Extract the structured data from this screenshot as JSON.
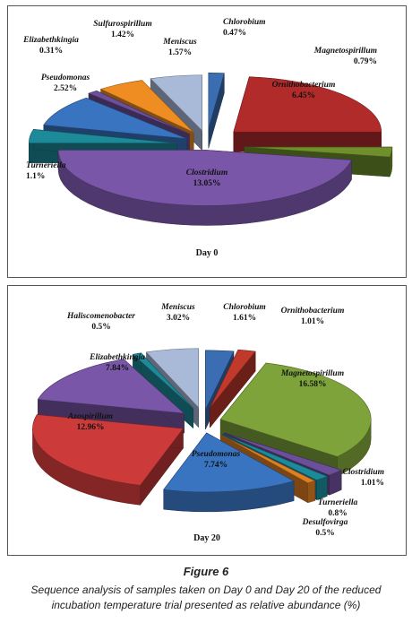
{
  "figure": {
    "title": "Figure 6",
    "caption": "Sequence analysis of samples taken on Day 0 and Day 20 of the reduced incubation temperature trial presented as relative abundance (%)"
  },
  "chart_data": [
    {
      "type": "pie",
      "title": "Day 0",
      "slices": [
        {
          "label": "Chlorobium",
          "value": 0.47,
          "display": "0.47%",
          "color": "#3b6db3"
        },
        {
          "label": "Ornithobacterium",
          "value": 6.45,
          "display": "6.45%",
          "color": "#b22b2b"
        },
        {
          "label": "Magnetospirillum",
          "value": 0.79,
          "display": "0.79%",
          "color": "#6e8f2b"
        },
        {
          "label": "Clostridium",
          "value": 13.05,
          "display": "13.05%",
          "color": "#7a56a8"
        },
        {
          "label": "Turneriella",
          "value": 1.1,
          "display": "1.1%",
          "color": "#1c8a99"
        },
        {
          "label": "Pseudomonas",
          "value": 2.52,
          "display": "2.52%",
          "color": "#3974c1"
        },
        {
          "label": "Elizabethkingia",
          "value": 0.31,
          "display": "0.31%",
          "color": "#6b4f98"
        },
        {
          "label": "Sulfurospirillum",
          "value": 1.42,
          "display": "1.42%",
          "color": "#ef8d22"
        },
        {
          "label": "Meniscus",
          "value": 1.57,
          "display": "1.57%",
          "color": "#a9b9d8"
        }
      ]
    },
    {
      "type": "pie",
      "title": "Day 20",
      "slices": [
        {
          "label": "Chlorobium",
          "value": 1.61,
          "display": "1.61%",
          "color": "#3b6db3"
        },
        {
          "label": "Ornithobacterium",
          "value": 1.01,
          "display": "1.01%",
          "color": "#c0392b"
        },
        {
          "label": "Magnetospirillum",
          "value": 16.58,
          "display": "16.58%",
          "color": "#7ea33a"
        },
        {
          "label": "Clostridium",
          "value": 1.01,
          "display": "1.01%",
          "color": "#6b4f98"
        },
        {
          "label": "Turneriella",
          "value": 0.8,
          "display": "0.8%",
          "color": "#1c8a99"
        },
        {
          "label": "Desulfovirga",
          "value": 0.5,
          "display": "0.5%",
          "color": "#e07f22"
        },
        {
          "label": "Pseudomonas",
          "value": 7.74,
          "display": "7.74%",
          "color": "#3974c1"
        },
        {
          "label": "Azospirillum",
          "value": 12.96,
          "display": "12.96%",
          "color": "#cc3a3a"
        },
        {
          "label": "Elizabethkingia",
          "value": 7.84,
          "display": "7.84%",
          "color": "#7a56a8"
        },
        {
          "label": "Haliscomenobacter",
          "value": 0.5,
          "display": "0.5%",
          "color": "#1c8a99"
        },
        {
          "label": "Meniscus",
          "value": 3.02,
          "display": "3.02%",
          "color": "#a9b9d8"
        }
      ]
    }
  ]
}
